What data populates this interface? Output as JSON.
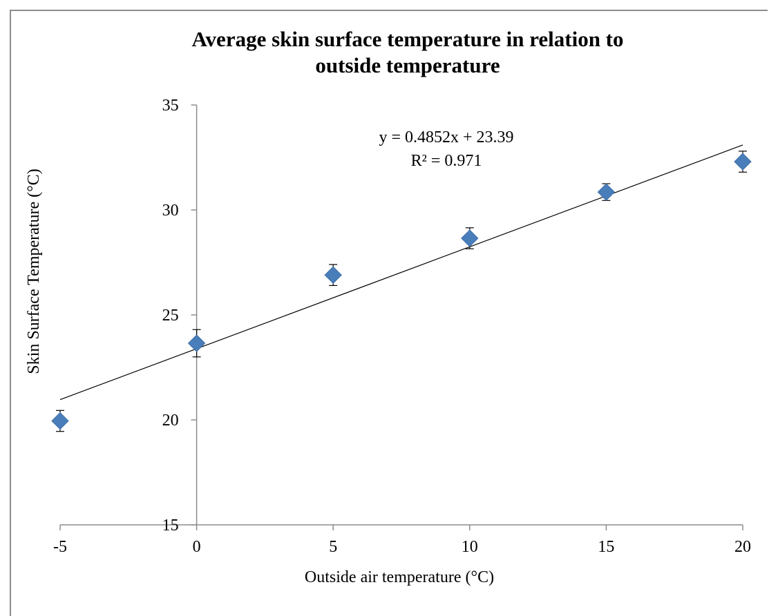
{
  "chart_data": {
    "type": "scatter",
    "title_lines": [
      "Average skin surface temperature in relation to",
      "outside temperature"
    ],
    "xlabel": "Outside air temperature (°C)",
    "ylabel": "Skin Surface Temperature (°C)",
    "xlim": [
      -5,
      20
    ],
    "ylim": [
      15,
      35
    ],
    "x_ticks": [
      "-5",
      "0",
      "5",
      "10",
      "15",
      "20"
    ],
    "y_ticks": [
      "15",
      "20",
      "25",
      "30",
      "35"
    ],
    "grid": false,
    "marker_color": "#4a7ebb",
    "points": [
      {
        "x": -5,
        "y": 19.95,
        "err": 0.5
      },
      {
        "x": 0,
        "y": 23.65,
        "err": 0.65
      },
      {
        "x": 5,
        "y": 26.9,
        "err": 0.5
      },
      {
        "x": 10,
        "y": 28.65,
        "err": 0.5
      },
      {
        "x": 15,
        "y": 30.85,
        "err": 0.4
      },
      {
        "x": 20,
        "y": 32.3,
        "err": 0.5
      }
    ],
    "trendline": {
      "slope": 0.4852,
      "intercept": 23.39,
      "x_range": [
        -5,
        20
      ]
    },
    "annotations": {
      "equation": "y = 0.4852x + 23.39",
      "r_squared": "R² = 0.971"
    }
  }
}
